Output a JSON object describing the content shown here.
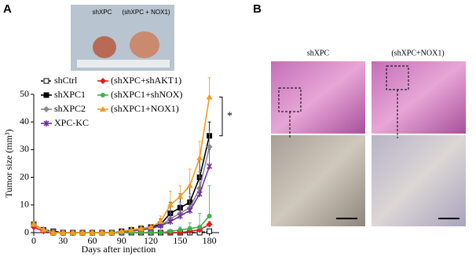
{
  "panels": {
    "a": "A",
    "b": "B",
    "photo_left": "shXPC",
    "photo_right": "(shXPC + NOX1)",
    "histo_left": "shXPC",
    "histo_right": "(shXPC+NOX1)"
  },
  "chart_data": {
    "type": "line",
    "ylabel": "Tumor size (mm³)",
    "xlabel": "Days after injection",
    "annotation": "*",
    "x": [
      0,
      10,
      20,
      30,
      40,
      50,
      60,
      70,
      80,
      90,
      100,
      110,
      120,
      130,
      140,
      150,
      160,
      170,
      180
    ],
    "xlim": [
      0,
      190
    ],
    "xticks": [
      0,
      30,
      60,
      90,
      120,
      150,
      180
    ],
    "ylim": [
      0,
      50
    ],
    "yticks": [
      0,
      10,
      20,
      30,
      40,
      50
    ],
    "series": [
      {
        "name": "shCtrl",
        "color": "#000000",
        "marker": "square-open",
        "dash": true,
        "values": [
          3,
          1,
          0.5,
          0,
          0,
          0,
          0,
          0,
          0,
          0,
          0,
          0,
          0,
          0,
          0,
          0,
          0,
          0,
          0.5
        ],
        "errors": [
          1,
          0.5,
          0,
          0,
          0,
          0,
          0,
          0,
          0,
          0,
          0,
          0,
          0,
          0,
          0,
          0,
          0,
          0,
          0.5
        ]
      },
      {
        "name": "shXPC1",
        "color": "#000000",
        "marker": "square",
        "values": [
          3,
          1,
          0,
          0,
          0,
          0,
          0,
          0,
          0,
          0.5,
          1,
          1.5,
          2,
          3,
          7,
          9,
          11,
          20,
          35
        ],
        "errors": [
          1,
          0.5,
          0,
          0,
          0,
          0,
          0,
          0,
          0,
          0.5,
          1,
          1,
          1,
          2,
          4,
          5,
          6,
          7,
          5
        ]
      },
      {
        "name": "shXPC2",
        "color": "#8c8c8c",
        "marker": "diamond",
        "values": [
          3,
          1,
          0,
          0,
          0,
          0,
          0,
          0,
          0,
          0,
          0.5,
          1,
          1.5,
          2.5,
          5,
          7,
          9,
          16,
          31
        ],
        "errors": [
          1,
          0.5,
          0,
          0,
          0,
          0,
          0,
          0,
          0,
          0,
          0.5,
          1,
          1,
          2,
          3,
          4,
          5,
          6,
          6
        ]
      },
      {
        "name": "XPC-KC",
        "color": "#7030a0",
        "marker": "x",
        "values": [
          3,
          1,
          0,
          0,
          0,
          0,
          0,
          0,
          0,
          0,
          0.5,
          1,
          1.5,
          2.5,
          4,
          6,
          8,
          14,
          24
        ],
        "errors": [
          1,
          0.5,
          0,
          0,
          0,
          0,
          0,
          0,
          0,
          0,
          0.5,
          1,
          1,
          2,
          3,
          4,
          5,
          6,
          6
        ]
      },
      {
        "name": "(shXPC+shAKT1)",
        "color": "#e41a1c",
        "marker": "diamond",
        "values": [
          2,
          0.5,
          0,
          0,
          0,
          0,
          0,
          0,
          0,
          0,
          0,
          0,
          0,
          0,
          0,
          0,
          0.5,
          1,
          3
        ],
        "errors": [
          1,
          0.5,
          0,
          0,
          0,
          0,
          0,
          0,
          0,
          0,
          0,
          0,
          0,
          0,
          0,
          0,
          0.5,
          1,
          1
        ]
      },
      {
        "name": "(shXPC1+shNOX)",
        "color": "#3cb44b",
        "marker": "circle",
        "values": [
          3,
          1,
          0,
          0,
          0,
          0,
          0,
          0,
          0,
          0,
          0,
          0,
          0,
          0,
          0.5,
          1,
          1.5,
          2,
          6
        ],
        "errors": [
          1,
          0.5,
          0,
          0,
          0,
          0,
          0,
          0,
          0,
          0,
          0,
          0,
          0,
          0,
          0.5,
          1,
          2,
          5,
          11
        ]
      },
      {
        "name": "(shXPC1+NOX1)",
        "color": "#f39c1f",
        "marker": "triangle",
        "values": [
          3,
          1,
          0,
          0,
          0,
          0,
          0,
          0,
          0,
          0.5,
          1,
          1.5,
          2,
          4,
          10,
          13,
          17,
          27,
          49
        ],
        "errors": [
          1,
          0.5,
          0,
          0,
          0,
          0,
          0,
          0,
          0,
          0.5,
          1,
          1,
          1,
          2,
          5,
          4,
          6,
          6,
          7
        ]
      }
    ]
  }
}
